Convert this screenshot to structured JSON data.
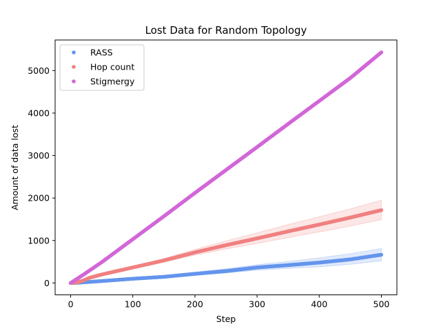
{
  "chart_data": {
    "type": "scatter",
    "title": "Lost Data for Random Topology",
    "xlabel": "Step",
    "ylabel": "Amount of data lost",
    "xlim": [
      -25,
      525
    ],
    "ylim": [
      -280,
      5720
    ],
    "xticks": [
      0,
      100,
      200,
      300,
      400,
      500
    ],
    "yticks": [
      0,
      1000,
      2000,
      3000,
      4000,
      5000
    ],
    "grid": false,
    "legend_position": "upper-left",
    "series": [
      {
        "name": "RASS",
        "color": "#6495ed",
        "points": [
          [
            0,
            0
          ],
          [
            10,
            5
          ],
          [
            25,
            20
          ],
          [
            50,
            45
          ],
          [
            100,
            100
          ],
          [
            150,
            145
          ],
          [
            200,
            215
          ],
          [
            250,
            280
          ],
          [
            300,
            365
          ],
          [
            350,
            420
          ],
          [
            400,
            480
          ],
          [
            450,
            555
          ],
          [
            500,
            665
          ]
        ],
        "band_upper": [
          [
            0,
            0
          ],
          [
            50,
            60
          ],
          [
            100,
            120
          ],
          [
            150,
            175
          ],
          [
            200,
            255
          ],
          [
            250,
            335
          ],
          [
            300,
            430
          ],
          [
            350,
            505
          ],
          [
            400,
            590
          ],
          [
            450,
            690
          ],
          [
            500,
            810
          ]
        ],
        "band_lower": [
          [
            0,
            0
          ],
          [
            50,
            35
          ],
          [
            100,
            85
          ],
          [
            150,
            120
          ],
          [
            200,
            180
          ],
          [
            250,
            235
          ],
          [
            300,
            300
          ],
          [
            350,
            345
          ],
          [
            400,
            380
          ],
          [
            450,
            440
          ],
          [
            500,
            520
          ]
        ]
      },
      {
        "name": "Hop count",
        "color": "#f08080",
        "points": [
          [
            0,
            0
          ],
          [
            10,
            15
          ],
          [
            20,
            55
          ],
          [
            30,
            120
          ],
          [
            50,
            200
          ],
          [
            100,
            365
          ],
          [
            150,
            530
          ],
          [
            200,
            720
          ],
          [
            250,
            890
          ],
          [
            300,
            1050
          ],
          [
            350,
            1215
          ],
          [
            400,
            1375
          ],
          [
            450,
            1540
          ],
          [
            500,
            1715
          ]
        ],
        "band_upper": [
          [
            0,
            0
          ],
          [
            50,
            215
          ],
          [
            100,
            390
          ],
          [
            150,
            575
          ],
          [
            200,
            790
          ],
          [
            250,
            990
          ],
          [
            300,
            1180
          ],
          [
            350,
            1375
          ],
          [
            400,
            1560
          ],
          [
            450,
            1745
          ],
          [
            500,
            1950
          ]
        ],
        "band_lower": [
          [
            0,
            0
          ],
          [
            50,
            185
          ],
          [
            100,
            340
          ],
          [
            150,
            490
          ],
          [
            200,
            655
          ],
          [
            250,
            800
          ],
          [
            300,
            930
          ],
          [
            350,
            1070
          ],
          [
            400,
            1200
          ],
          [
            450,
            1340
          ],
          [
            500,
            1490
          ]
        ]
      },
      {
        "name": "Stigmergy",
        "color": "#d266d8",
        "points": [
          [
            0,
            0
          ],
          [
            10,
            95
          ],
          [
            20,
            190
          ],
          [
            30,
            290
          ],
          [
            50,
            490
          ],
          [
            100,
            1030
          ],
          [
            150,
            1570
          ],
          [
            200,
            2120
          ],
          [
            250,
            2660
          ],
          [
            300,
            3200
          ],
          [
            350,
            3745
          ],
          [
            400,
            4285
          ],
          [
            450,
            4825
          ],
          [
            500,
            5430
          ]
        ]
      }
    ]
  }
}
